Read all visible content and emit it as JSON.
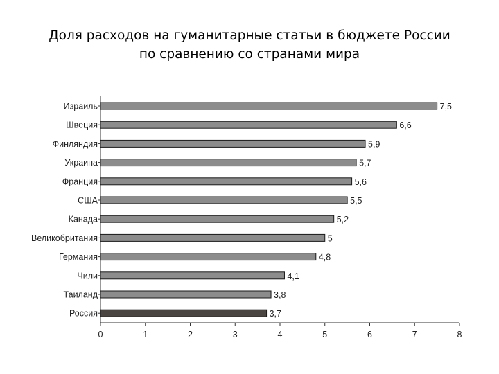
{
  "slide": {
    "title_line1": "Доля расходов на гуманитарные статьи в бюджете России",
    "title_line2": "по сравнению со странами мира"
  },
  "chart_data": {
    "type": "bar",
    "orientation": "horizontal",
    "categories": [
      "Израиль",
      "Швеция",
      "Финляндия",
      "Украина",
      "Франция",
      "США",
      "Канада",
      "Великобритания",
      "Германия",
      "Чили",
      "Таиланд",
      "Россия"
    ],
    "values": [
      7.5,
      6.6,
      5.9,
      5.7,
      5.6,
      5.5,
      5.2,
      5,
      4.8,
      4.1,
      3.8,
      3.7
    ],
    "value_labels": [
      "7,5",
      "6,6",
      "5,9",
      "5,7",
      "5,6",
      "5,5",
      "5,2",
      "5",
      "4,8",
      "4,1",
      "3,8",
      "3,7"
    ],
    "xlim": [
      0,
      8
    ],
    "xticks": [
      "0",
      "1",
      "2",
      "3",
      "4",
      "5",
      "6",
      "7",
      "8"
    ],
    "grid": false,
    "legend": "none",
    "colors": {
      "bar": "#8c8c8c",
      "highlight_bar": "#4a4541",
      "axis": "#333333",
      "bar_stroke": "#1a1a1a"
    },
    "highlight_category": "Россия"
  }
}
